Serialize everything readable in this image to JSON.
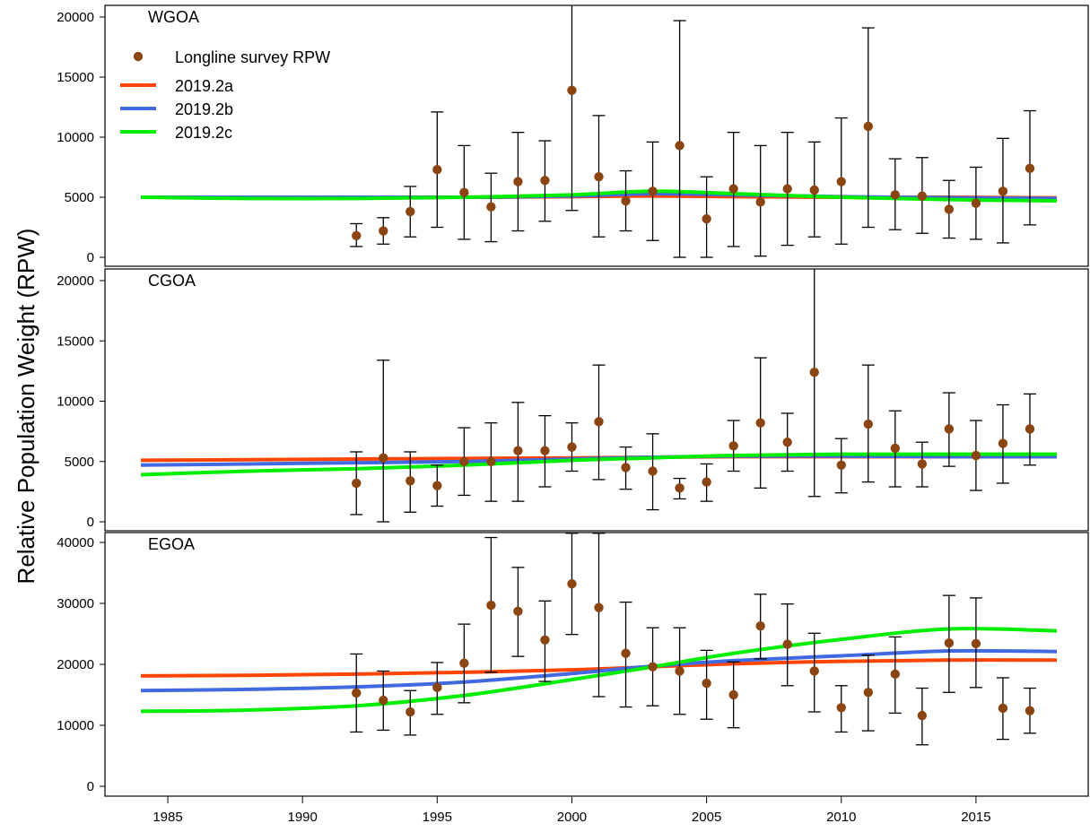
{
  "colors": {
    "model_2019_2a": "#FF4500",
    "model_2019_2b": "#4169E1",
    "model_2019_2c": "#00EE00",
    "survey_point": "#8B4513",
    "error_bar": "#000000"
  },
  "chart_data": {
    "type": "scatter",
    "ylabel": "Relative Population Weight (RPW)",
    "xlabel": "",
    "xlim": [
      1984,
      2018
    ],
    "x_ticks": [
      1985,
      1990,
      1995,
      2000,
      2005,
      2010,
      2015
    ],
    "grid": false,
    "legend": {
      "placement": "top-left",
      "entries": [
        {
          "label": "Longline survey RPW",
          "kind": "point",
          "color_key": "survey_point"
        },
        {
          "label": "2019.2a",
          "kind": "line",
          "color_key": "model_2019_2a"
        },
        {
          "label": "2019.2b",
          "kind": "line",
          "color_key": "model_2019_2b"
        },
        {
          "label": "2019.2c",
          "kind": "line",
          "color_key": "model_2019_2c"
        }
      ]
    },
    "panels": [
      {
        "label": "WGOA",
        "ylim": [
          0,
          20000
        ],
        "y_ticks": [
          0,
          5000,
          10000,
          15000,
          20000
        ],
        "observed": {
          "name": "Longline survey RPW",
          "x": [
            1992,
            1993,
            1994,
            1995,
            1996,
            1997,
            1998,
            1999,
            2000,
            2001,
            2002,
            2003,
            2004,
            2005,
            2006,
            2007,
            2008,
            2009,
            2010,
            2011,
            2012,
            2013,
            2014,
            2015,
            2016,
            2017
          ],
          "y": [
            1800,
            2200,
            3800,
            7300,
            5400,
            4200,
            6300,
            6400,
            13900,
            6700,
            4700,
            5500,
            9300,
            3200,
            5700,
            4600,
            5700,
            5600,
            6300,
            10900,
            5200,
            5100,
            4000,
            4500,
            5500,
            7400
          ],
          "lower": [
            900,
            1100,
            1700,
            2500,
            1500,
            1300,
            2200,
            3000,
            3900,
            1700,
            2200,
            1400,
            0,
            0,
            900,
            100,
            1000,
            1700,
            1100,
            2500,
            2300,
            2000,
            1600,
            1500,
            1200,
            2700
          ],
          "upper": [
            2800,
            3300,
            5900,
            12100,
            9300,
            7000,
            10400,
            9700,
            21000,
            11800,
            7200,
            9600,
            19700,
            6700,
            10400,
            9300,
            10400,
            9600,
            11600,
            19100,
            8200,
            8300,
            6400,
            7500,
            9900,
            12200
          ]
        },
        "models": [
          {
            "name": "2019.2a",
            "color_key": "model_2019_2a",
            "x": [
              1984,
              1988,
              1992,
              1996,
              2000,
              2003,
              2006,
              2010,
              2014,
              2018
            ],
            "y": [
              5000,
              5000,
              5000,
              5000,
              5050,
              5100,
              5050,
              5000,
              5000,
              4950
            ]
          },
          {
            "name": "2019.2b",
            "color_key": "model_2019_2b",
            "x": [
              1984,
              1988,
              1992,
              1996,
              2000,
              2003,
              2006,
              2010,
              2014,
              2018
            ],
            "y": [
              5000,
              5000,
              5000,
              5000,
              5100,
              5300,
              5200,
              5050,
              4950,
              4900
            ]
          },
          {
            "name": "2019.2c",
            "color_key": "model_2019_2c",
            "x": [
              1984,
              1988,
              1992,
              1996,
              2000,
              2003,
              2006,
              2010,
              2014,
              2018
            ],
            "y": [
              5000,
              4900,
              4900,
              5000,
              5200,
              5500,
              5300,
              5000,
              4800,
              4700
            ]
          }
        ]
      },
      {
        "label": "CGOA",
        "ylim": [
          0,
          20000
        ],
        "y_ticks": [
          0,
          5000,
          10000,
          15000,
          20000
        ],
        "observed": {
          "name": "Longline survey RPW",
          "x": [
            1992,
            1993,
            1994,
            1995,
            1996,
            1997,
            1998,
            1999,
            2000,
            2001,
            2002,
            2003,
            2004,
            2005,
            2006,
            2007,
            2008,
            2009,
            2010,
            2011,
            2012,
            2013,
            2014,
            2015,
            2016,
            2017
          ],
          "y": [
            3200,
            5300,
            3400,
            3000,
            5000,
            5000,
            5900,
            5900,
            6200,
            8300,
            4500,
            4200,
            2800,
            3300,
            6300,
            8200,
            6600,
            12400,
            4700,
            8100,
            6100,
            4800,
            7700,
            5500,
            6500,
            7700
          ],
          "lower": [
            600,
            0,
            800,
            1300,
            2200,
            1700,
            1700,
            2900,
            4200,
            3500,
            2700,
            1000,
            1900,
            1700,
            4200,
            2800,
            4200,
            2100,
            2400,
            3300,
            2900,
            2900,
            4600,
            2600,
            3200,
            4700
          ],
          "upper": [
            5800,
            13400,
            5800,
            4700,
            7800,
            8200,
            9900,
            8800,
            8200,
            13000,
            6200,
            7300,
            3600,
            4800,
            8400,
            13600,
            9000,
            21000,
            6900,
            13000,
            9200,
            6600,
            10700,
            8400,
            9700,
            10600
          ]
        },
        "models": [
          {
            "name": "2019.2a",
            "color_key": "model_2019_2a",
            "x": [
              1984,
              1988,
              1992,
              1996,
              2000,
              2003,
              2006,
              2010,
              2014,
              2018
            ],
            "y": [
              5100,
              5150,
              5200,
              5250,
              5300,
              5350,
              5400,
              5400,
              5400,
              5400
            ]
          },
          {
            "name": "2019.2b",
            "color_key": "model_2019_2b",
            "x": [
              1984,
              1988,
              1992,
              1996,
              2000,
              2003,
              2006,
              2010,
              2014,
              2018
            ],
            "y": [
              4700,
              4800,
              4900,
              5000,
              5200,
              5350,
              5450,
              5450,
              5400,
              5400
            ]
          },
          {
            "name": "2019.2c",
            "color_key": "model_2019_2c",
            "x": [
              1984,
              1988,
              1992,
              1996,
              2000,
              2003,
              2006,
              2010,
              2014,
              2018
            ],
            "y": [
              3900,
              4200,
              4400,
              4700,
              5100,
              5300,
              5500,
              5600,
              5600,
              5600
            ]
          }
        ]
      },
      {
        "label": "EGOA",
        "ylim": [
          0,
          40000
        ],
        "y_ticks": [
          0,
          10000,
          20000,
          30000,
          40000
        ],
        "observed": {
          "name": "Longline survey RPW",
          "x": [
            1992,
            1993,
            1994,
            1995,
            1996,
            1997,
            1998,
            1999,
            2000,
            2001,
            2002,
            2003,
            2004,
            2005,
            2006,
            2007,
            2008,
            2009,
            2010,
            2011,
            2012,
            2013,
            2014,
            2015,
            2016,
            2017
          ],
          "y": [
            15300,
            14100,
            12200,
            16200,
            20200,
            29700,
            28700,
            24000,
            33200,
            29300,
            21800,
            19600,
            18900,
            16900,
            15000,
            26300,
            23300,
            18900,
            12900,
            15400,
            18400,
            11600,
            23500,
            23400,
            12800,
            12400
          ],
          "lower": [
            8900,
            9200,
            8400,
            11800,
            13700,
            18700,
            21300,
            17200,
            24900,
            14700,
            13000,
            13200,
            11800,
            11000,
            9600,
            20900,
            16500,
            12200,
            8900,
            9100,
            12000,
            6800,
            15400,
            16200,
            7700,
            8700
          ],
          "upper": [
            21700,
            18900,
            15700,
            20300,
            26600,
            40800,
            35900,
            30400,
            41500,
            41500,
            30200,
            26000,
            26000,
            22300,
            20400,
            31500,
            29900,
            25100,
            16500,
            21500,
            24500,
            16100,
            31300,
            30900,
            17800,
            16100
          ]
        },
        "models": [
          {
            "name": "2019.2a",
            "color_key": "model_2019_2a",
            "x": [
              1984,
              1988,
              1992,
              1996,
              2000,
              2003,
              2006,
              2010,
              2014,
              2018
            ],
            "y": [
              18100,
              18200,
              18400,
              18700,
              19100,
              19600,
              20100,
              20500,
              20700,
              20700
            ]
          },
          {
            "name": "2019.2b",
            "color_key": "model_2019_2b",
            "x": [
              1984,
              1988,
              1992,
              1996,
              2000,
              2003,
              2006,
              2010,
              2014,
              2018
            ],
            "y": [
              15700,
              15900,
              16300,
              17100,
              18500,
              19700,
              20600,
              21400,
              22200,
              22100
            ]
          },
          {
            "name": "2019.2c",
            "color_key": "model_2019_2c",
            "x": [
              1984,
              1988,
              1992,
              1996,
              2000,
              2003,
              2006,
              2010,
              2014,
              2018
            ],
            "y": [
              12300,
              12500,
              13200,
              14900,
              17500,
              19600,
              21800,
              24100,
              25800,
              25500
            ]
          }
        ]
      }
    ]
  }
}
